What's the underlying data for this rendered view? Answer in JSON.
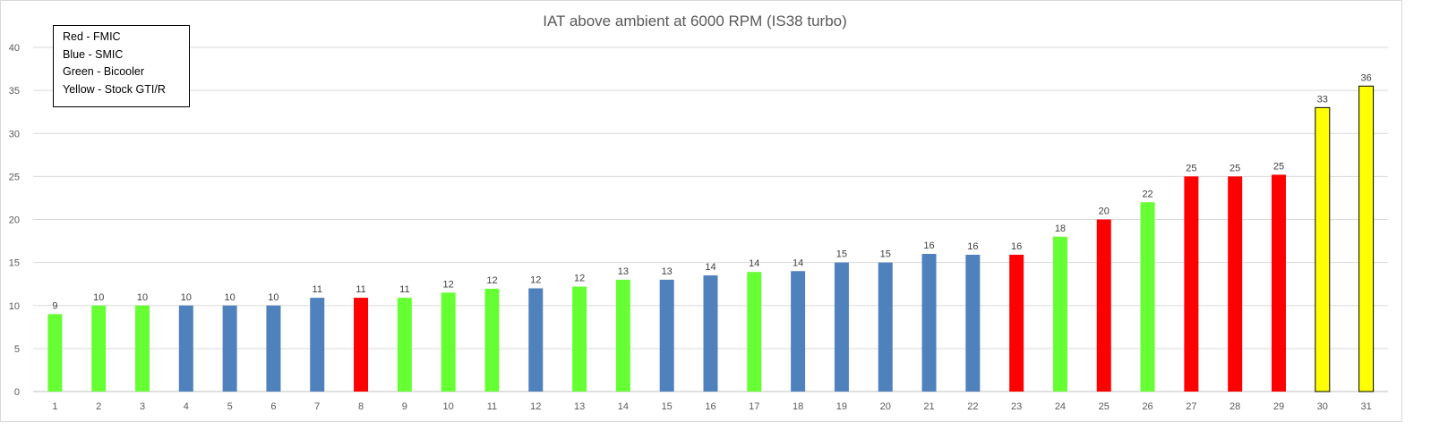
{
  "chart_data": {
    "type": "bar",
    "title": "IAT above ambient at 6000 RPM (IS38 turbo)",
    "xlabel": "",
    "ylabel": "",
    "ylim": [
      0,
      40
    ],
    "yticks": [
      "0",
      "5",
      "10",
      "15",
      "20",
      "25",
      "30",
      "35",
      "40"
    ],
    "grid": true,
    "categories": [
      "1",
      "2",
      "3",
      "4",
      "5",
      "6",
      "7",
      "8",
      "9",
      "10",
      "11",
      "12",
      "13",
      "14",
      "15",
      "16",
      "17",
      "18",
      "19",
      "20",
      "21",
      "22",
      "23",
      "24",
      "25",
      "26",
      "27",
      "28",
      "29",
      "30",
      "31"
    ],
    "values": [
      9,
      10,
      10,
      10,
      10,
      10,
      10.9,
      10.9,
      10.9,
      11.5,
      11.95,
      12,
      12.2,
      13,
      13,
      13.5,
      13.9,
      14,
      15,
      15,
      16,
      15.9,
      15.9,
      18,
      20,
      22,
      25,
      25,
      25.2,
      33,
      35.5
    ],
    "data_labels": [
      "9",
      "10",
      "10",
      "10",
      "10",
      "10",
      "11",
      "11",
      "11",
      "12",
      "12",
      "12",
      "12",
      "13",
      "13",
      "14",
      "14",
      "14",
      "15",
      "15",
      "16",
      "16",
      "16",
      "18",
      "20",
      "22",
      "25",
      "25",
      "25",
      "33",
      "36"
    ],
    "bar_groups": [
      "G",
      "G",
      "G",
      "B",
      "B",
      "B",
      "B",
      "R",
      "G",
      "G",
      "G",
      "B",
      "G",
      "G",
      "B",
      "B",
      "G",
      "B",
      "B",
      "B",
      "B",
      "B",
      "R",
      "G",
      "R",
      "G",
      "R",
      "R",
      "R",
      "Y",
      "Y"
    ],
    "group_colors": {
      "R": "#ff0000",
      "B": "#4f81bd",
      "G": "#66ff33",
      "Y": "#ffff00"
    },
    "legend_placement": "top-left",
    "legend": [
      "Red - FMIC",
      "Blue - SMIC",
      "Green - Bicooler",
      "Yellow - Stock GTI/R"
    ]
  }
}
